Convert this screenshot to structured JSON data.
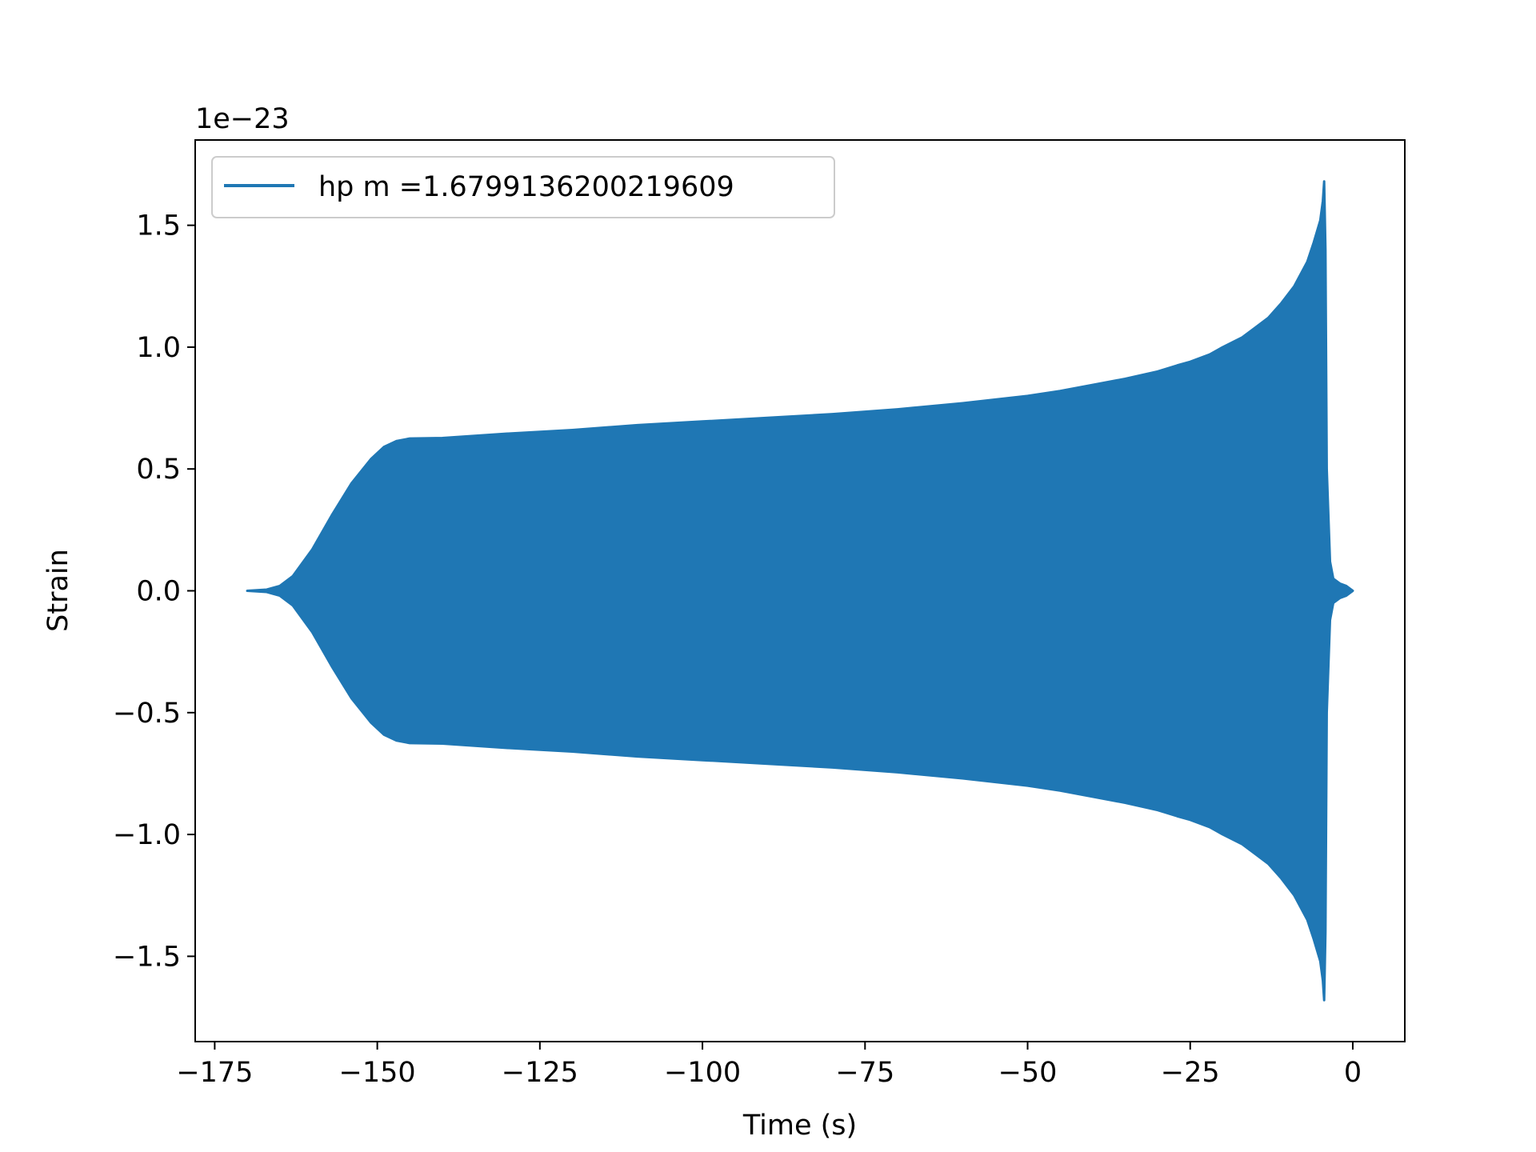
{
  "chart_data": {
    "type": "line",
    "title": "",
    "xlabel": "Time (s)",
    "ylabel": "Strain",
    "y_offset_label": "1e−23",
    "y_scale_factor": 1e-23,
    "xlim": [
      -178,
      8
    ],
    "ylim": [
      -1.85,
      1.85
    ],
    "xticks": [
      -175,
      -150,
      -125,
      -100,
      -75,
      -50,
      -25,
      0
    ],
    "xtick_labels": [
      "−175",
      "−150",
      "−125",
      "−100",
      "−75",
      "−50",
      "−25",
      "0"
    ],
    "yticks": [
      -1.5,
      -1.0,
      -0.5,
      0.0,
      0.5,
      1.0,
      1.5
    ],
    "ytick_labels": [
      "−1.5",
      "−1.0",
      "−0.5",
      "0.0",
      "0.5",
      "1.0",
      "1.5"
    ],
    "grid": false,
    "legend_position": "top-left",
    "series": [
      {
        "name": "hp m =1.6799136200219609",
        "color": "#1f77b4",
        "description_note": "",
        "envelope_x": [
          -170,
          -167,
          -165,
          -163,
          -160,
          -157,
          -154,
          -151,
          -149,
          -147,
          -145,
          -140,
          -130,
          -120,
          -110,
          -100,
          -90,
          -80,
          -70,
          -60,
          -50,
          -45,
          -40,
          -35,
          -30,
          -27,
          -25,
          -22,
          -20,
          -17,
          -15,
          -13,
          -11,
          -9,
          -7,
          -6,
          -5,
          -4.6,
          -4.4,
          -4.2,
          -4.0,
          -3.5,
          -3.0,
          -2.0,
          -1.0,
          0.0
        ],
        "envelope_upper": [
          0.0,
          0.005,
          0.02,
          0.06,
          0.17,
          0.31,
          0.44,
          0.54,
          0.59,
          0.615,
          0.625,
          0.627,
          0.645,
          0.66,
          0.68,
          0.695,
          0.71,
          0.725,
          0.745,
          0.77,
          0.8,
          0.82,
          0.845,
          0.87,
          0.9,
          0.925,
          0.94,
          0.97,
          1.0,
          1.04,
          1.08,
          1.12,
          1.18,
          1.25,
          1.35,
          1.43,
          1.52,
          1.6,
          1.68,
          1.4,
          0.5,
          0.12,
          0.05,
          0.03,
          0.02,
          0.0
        ]
      }
    ]
  }
}
